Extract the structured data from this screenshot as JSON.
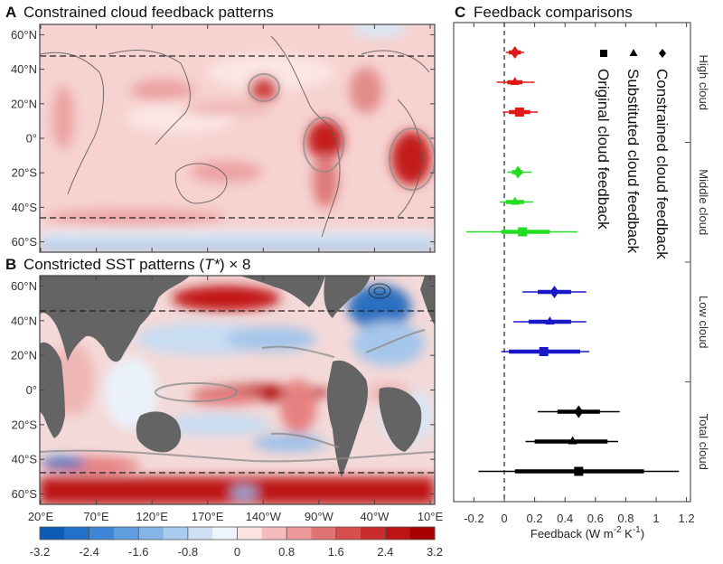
{
  "chart_data": [
    {
      "type": "heatmap",
      "panel": "A",
      "title": "Constrained cloud feedback patterns",
      "y_ticks": [
        "60°N",
        "40°N",
        "20°N",
        "0°",
        "20°S",
        "40°S",
        "60°S"
      ],
      "x_ticks": [
        "20°E",
        "70°E",
        "120°E",
        "170°E",
        "140°W",
        "90°W",
        "40°W",
        "10°E"
      ],
      "dashed_lines": [
        "40°N",
        "40°S"
      ],
      "description": "Mostly positive (red) global cloud feedback with strong maxima off western coasts of Americas and Africa; negative (blue) band near Southern Ocean 60°S."
    },
    {
      "type": "heatmap",
      "panel": "B",
      "title_prefix": "Constricted SST patterns (",
      "title_var": "T*",
      "title_suffix": ") × 8",
      "y_ticks": [
        "60°N",
        "40°N",
        "20°N",
        "0°",
        "20°S",
        "40°S",
        "60°S"
      ],
      "x_ticks": [
        "20°E",
        "70°E",
        "120°E",
        "170°E",
        "140°W",
        "90°W",
        "40°W",
        "10°E"
      ],
      "dashed_lines": [
        "40°N",
        "40°S"
      ],
      "land_color": "#646464",
      "description": "Warm equatorial east Pacific tongue and Southern Ocean, cool subtropical bands and North Atlantic."
    },
    {
      "type": "colorbar",
      "ticks": [
        "-3.2",
        "-2.4",
        "-1.6",
        "-0.8",
        "0",
        "0.8",
        "1.6",
        "2.4",
        "3.2"
      ],
      "range": [
        -3.2,
        3.2
      ],
      "colors": [
        "#0d5cb3",
        "#2171c9",
        "#3f86d6",
        "#5f9ddf",
        "#85b5e6",
        "#a9cbee",
        "#cfe0f4",
        "#eef4fb",
        "#fbe3e3",
        "#f4bcbc",
        "#eb9999",
        "#e07474",
        "#d74e4e",
        "#cc2b2b",
        "#bd1414",
        "#a80000"
      ]
    },
    {
      "type": "scatter",
      "panel": "C",
      "title": "Feedback comparisons",
      "xlabel": "Feedback (W m",
      "xlabel_sup1": "-2",
      "xlabel_mid": " K",
      "xlabel_sup2": "-1",
      "xlabel_end": ")",
      "xlim": [
        -0.25,
        1.22
      ],
      "x_ticks": [
        -0.2,
        0,
        0.2,
        0.4,
        0.6,
        0.8,
        1,
        1.2
      ],
      "x_tick_labels": [
        "-0.2",
        "0",
        "0.2",
        "0.4",
        "0.6",
        "0.8",
        "1",
        "1.2"
      ],
      "zero_line": "dashed",
      "legend": [
        {
          "marker": "diamond",
          "label": "Constrained cloud feedback"
        },
        {
          "marker": "triangle",
          "label": "Substituted cloud feedback"
        },
        {
          "marker": "square",
          "label": "Original cloud feedback"
        }
      ],
      "groups": [
        {
          "name": "High cloud",
          "color": "#e01818",
          "points": [
            {
              "marker": "diamond",
              "value": 0.07,
              "thick": [
                0.03,
                0.11
              ],
              "thin": [
                0.01,
                0.13
              ]
            },
            {
              "marker": "triangle",
              "value": 0.07,
              "thick": [
                0.02,
                0.12
              ],
              "thin": [
                -0.05,
                0.2
              ]
            },
            {
              "marker": "square",
              "value": 0.1,
              "thick": [
                0.03,
                0.17
              ],
              "thin": [
                -0.01,
                0.22
              ]
            }
          ]
        },
        {
          "name": "Middle cloud",
          "color": "#22dd22",
          "points": [
            {
              "marker": "diamond",
              "value": 0.09,
              "thick": [
                0.05,
                0.12
              ],
              "thin": [
                0.02,
                0.18
              ]
            },
            {
              "marker": "triangle",
              "value": 0.07,
              "thick": [
                0.01,
                0.13
              ],
              "thin": [
                -0.03,
                0.19
              ]
            },
            {
              "marker": "square",
              "value": 0.12,
              "thick": [
                -0.02,
                0.3
              ],
              "thin": [
                -0.25,
                0.48
              ]
            }
          ]
        },
        {
          "name": "Low cloud",
          "color": "#1818c8",
          "points": [
            {
              "marker": "diamond",
              "value": 0.33,
              "thick": [
                0.22,
                0.44
              ],
              "thin": [
                0.12,
                0.54
              ]
            },
            {
              "marker": "triangle",
              "value": 0.3,
              "thick": [
                0.16,
                0.44
              ],
              "thin": [
                0.06,
                0.54
              ]
            },
            {
              "marker": "square",
              "value": 0.26,
              "thick": [
                0.03,
                0.5
              ],
              "thin": [
                -0.02,
                0.56
              ]
            }
          ]
        },
        {
          "name": "Total cloud",
          "color": "#000000",
          "points": [
            {
              "marker": "diamond",
              "value": 0.49,
              "thick": [
                0.35,
                0.63
              ],
              "thin": [
                0.22,
                0.76
              ]
            },
            {
              "marker": "triangle",
              "value": 0.45,
              "thick": [
                0.2,
                0.68
              ],
              "thin": [
                0.14,
                0.75
              ]
            },
            {
              "marker": "square",
              "value": 0.49,
              "thick": [
                0.07,
                0.92
              ],
              "thin": [
                -0.17,
                1.15
              ]
            }
          ]
        }
      ]
    }
  ],
  "labels": {
    "A": "A",
    "B": "B",
    "C": "C"
  }
}
